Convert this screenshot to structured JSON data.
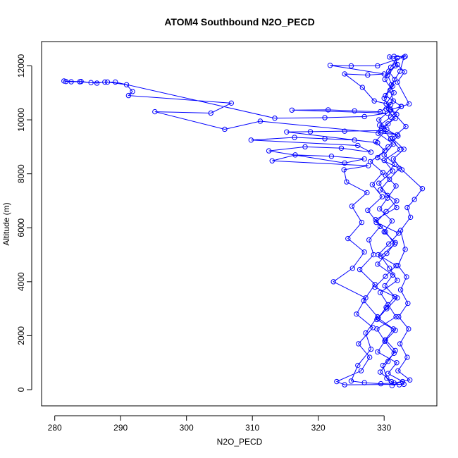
{
  "chart_data": {
    "type": "line",
    "title": "ATOM4 Southbound N2O_PECD",
    "xlabel": "N2O_PECD",
    "ylabel": "Altitude (m)",
    "xlim": [
      278,
      338
    ],
    "ylim": [
      -600,
      12900
    ],
    "xticks": [
      280,
      290,
      300,
      310,
      320,
      330
    ],
    "yticks": [
      0,
      2000,
      4000,
      6000,
      8000,
      10000,
      12000
    ],
    "grid": false,
    "colors": {
      "series": "#0000ff",
      "axes": "#000000"
    },
    "series": [
      {
        "marker": "open-circle",
        "points": [
          [
            331.2,
            150
          ],
          [
            330.4,
            420
          ],
          [
            329.8,
            900
          ],
          [
            331.5,
            1350
          ],
          [
            330.1,
            1800
          ],
          [
            328.9,
            2250
          ],
          [
            331.8,
            2700
          ],
          [
            330.6,
            3150
          ],
          [
            329.4,
            3600
          ],
          [
            332.0,
            4050
          ],
          [
            330.8,
            4500
          ],
          [
            329.5,
            4950
          ],
          [
            331.6,
            5400
          ],
          [
            330.2,
            5850
          ],
          [
            328.7,
            6300
          ],
          [
            331.9,
            6750
          ],
          [
            330.5,
            7200
          ],
          [
            329.2,
            7650
          ],
          [
            331.3,
            8100
          ],
          [
            330.0,
            8500
          ],
          [
            332.4,
            8900
          ],
          [
            331.0,
            9300
          ],
          [
            329.6,
            9700
          ],
          [
            331.7,
            10050
          ],
          [
            330.3,
            10400
          ],
          [
            331.4,
            10700
          ],
          [
            330.9,
            11100
          ],
          [
            331.6,
            11500
          ],
          [
            330.7,
            11800
          ],
          [
            332.0,
            12050
          ],
          [
            331.5,
            12350
          ],
          [
            333.0,
            12320
          ],
          [
            332.4,
            11800
          ],
          [
            331.1,
            11300
          ],
          [
            330.2,
            10900
          ],
          [
            332.6,
            10500
          ],
          [
            331.0,
            10100
          ],
          [
            329.3,
            9800
          ],
          [
            332.1,
            9400
          ],
          [
            330.6,
            9000
          ],
          [
            329.0,
            8600
          ],
          [
            332.3,
            8200
          ],
          [
            330.8,
            7800
          ],
          [
            329.4,
            7400
          ],
          [
            331.9,
            7000
          ],
          [
            330.3,
            6600
          ],
          [
            328.8,
            6200
          ],
          [
            332.2,
            5800
          ],
          [
            330.7,
            5400
          ],
          [
            329.1,
            5000
          ],
          [
            331.8,
            4600
          ],
          [
            330.2,
            4200
          ],
          [
            328.6,
            3800
          ],
          [
            332.0,
            3400
          ],
          [
            330.4,
            3000
          ],
          [
            328.9,
            2600
          ],
          [
            331.7,
            2200
          ],
          [
            330.1,
            1800
          ],
          [
            329.0,
            1400
          ],
          [
            331.9,
            1000
          ],
          [
            330.6,
            600
          ],
          [
            332.8,
            300
          ],
          [
            333.0,
            200
          ],
          [
            324.0,
            180
          ],
          [
            322.8,
            300
          ],
          [
            326.5,
            700
          ],
          [
            327.8,
            1200
          ],
          [
            326.1,
            1700
          ],
          [
            328.3,
            2300
          ],
          [
            325.8,
            2800
          ],
          [
            327.2,
            3400
          ],
          [
            322.3,
            4000
          ],
          [
            325.2,
            4500
          ],
          [
            327.0,
            5100
          ],
          [
            324.5,
            5600
          ],
          [
            326.6,
            6200
          ],
          [
            325.1,
            6800
          ],
          [
            327.4,
            7300
          ],
          [
            324.3,
            7700
          ],
          [
            323.9,
            8150
          ],
          [
            327.6,
            8300
          ],
          [
            313.0,
            8480
          ],
          [
            316.5,
            8700
          ],
          [
            322.0,
            8650
          ],
          [
            327.0,
            8550
          ],
          [
            324.0,
            8400
          ],
          [
            312.5,
            8850
          ],
          [
            318.0,
            9000
          ],
          [
            323.5,
            8950
          ],
          [
            328.0,
            8800
          ],
          [
            326.0,
            9050
          ],
          [
            309.8,
            9250
          ],
          [
            316.4,
            9350
          ],
          [
            321.0,
            9300
          ],
          [
            325.5,
            9250
          ],
          [
            329.0,
            9150
          ],
          [
            315.2,
            9550
          ],
          [
            318.8,
            9560
          ],
          [
            324.0,
            9580
          ],
          [
            329.5,
            9600
          ],
          [
            332.0,
            9450
          ],
          [
            311.2,
            9950
          ],
          [
            305.8,
            9650
          ],
          [
            295.2,
            10300
          ],
          [
            303.7,
            10250
          ],
          [
            306.8,
            10620
          ],
          [
            291.2,
            10900
          ],
          [
            291.8,
            11050
          ],
          [
            290.9,
            11300
          ],
          [
            288.0,
            11400
          ],
          [
            285.5,
            11380
          ],
          [
            284.0,
            11420
          ],
          [
            282.5,
            11410
          ],
          [
            281.7,
            11420
          ],
          [
            281.4,
            11440
          ],
          [
            283.8,
            11410
          ],
          [
            286.4,
            11360
          ],
          [
            287.6,
            11400
          ],
          [
            289.2,
            11400
          ],
          [
            313.4,
            10060
          ],
          [
            321.0,
            10080
          ],
          [
            327.0,
            10120
          ],
          [
            330.5,
            10250
          ],
          [
            316.0,
            10360
          ],
          [
            321.5,
            10370
          ],
          [
            325.5,
            10330
          ],
          [
            329.4,
            10300
          ],
          [
            331.0,
            10560
          ],
          [
            328.5,
            10700
          ],
          [
            326.7,
            11200
          ],
          [
            324.0,
            11700
          ],
          [
            327.5,
            11660
          ],
          [
            330.0,
            11700
          ],
          [
            321.8,
            12020
          ],
          [
            325.0,
            12000
          ],
          [
            329.0,
            12000
          ],
          [
            333.2,
            12350
          ],
          [
            330.8,
            12330
          ],
          [
            333.1,
            11780
          ],
          [
            332.0,
            11400
          ],
          [
            333.8,
            10590
          ],
          [
            332.6,
            10490
          ],
          [
            331.0,
            10380
          ],
          [
            333.3,
            9750
          ],
          [
            331.2,
            9320
          ],
          [
            333.0,
            8910
          ],
          [
            331.4,
            8550
          ],
          [
            332.7,
            8150
          ],
          [
            335.8,
            7450
          ],
          [
            334.6,
            7050
          ],
          [
            333.5,
            6750
          ],
          [
            334.0,
            6390
          ],
          [
            332.5,
            5900
          ],
          [
            333.2,
            5200
          ],
          [
            332.1,
            4600
          ],
          [
            333.4,
            4180
          ],
          [
            332.5,
            3700
          ],
          [
            333.6,
            3200
          ],
          [
            332.2,
            2700
          ],
          [
            333.7,
            2250
          ],
          [
            332.4,
            1700
          ],
          [
            333.5,
            1200
          ],
          [
            332.1,
            700
          ],
          [
            333.9,
            360
          ],
          [
            331.5,
            250
          ],
          [
            329.5,
            220
          ],
          [
            327.0,
            260
          ],
          [
            325.0,
            320
          ],
          [
            326.0,
            900
          ],
          [
            328.0,
            1500
          ],
          [
            327.2,
            2100
          ],
          [
            329.0,
            2700
          ],
          [
            326.9,
            3300
          ],
          [
            328.6,
            3900
          ],
          [
            326.3,
            4450
          ],
          [
            328.4,
            5000
          ],
          [
            327.7,
            5550
          ],
          [
            329.4,
            6050
          ],
          [
            327.5,
            6650
          ],
          [
            329.7,
            7150
          ],
          [
            328.2,
            7600
          ],
          [
            329.8,
            8050
          ],
          [
            327.9,
            8450
          ],
          [
            330.1,
            8850
          ],
          [
            328.7,
            9200
          ],
          [
            330.4,
            9650
          ],
          [
            329.2,
            10000
          ],
          [
            330.9,
            10350
          ],
          [
            330.0,
            10800
          ],
          [
            331.3,
            11250
          ],
          [
            330.5,
            11650
          ],
          [
            331.7,
            12000
          ],
          [
            332.0,
            12300
          ],
          [
            331.0,
            11950
          ],
          [
            330.1,
            11500
          ],
          [
            331.5,
            11000
          ],
          [
            330.3,
            10600
          ],
          [
            331.9,
            10200
          ],
          [
            330.6,
            9850
          ],
          [
            329.1,
            9500
          ],
          [
            331.4,
            9100
          ],
          [
            330.0,
            8700
          ],
          [
            331.6,
            8350
          ],
          [
            330.2,
            7950
          ],
          [
            331.8,
            7550
          ],
          [
            330.5,
            7100
          ],
          [
            329.3,
            6700
          ],
          [
            331.2,
            6250
          ],
          [
            330.0,
            5850
          ],
          [
            331.7,
            5450
          ],
          [
            330.4,
            5050
          ],
          [
            329.0,
            4650
          ],
          [
            331.3,
            4250
          ],
          [
            330.1,
            3850
          ],
          [
            331.6,
            3450
          ],
          [
            330.3,
            3050
          ],
          [
            329.1,
            2650
          ],
          [
            331.4,
            2250
          ],
          [
            330.2,
            1850
          ],
          [
            331.7,
            1450
          ],
          [
            330.6,
            1050
          ],
          [
            329.4,
            650
          ],
          [
            331.1,
            300
          ],
          [
            332.3,
            180
          ]
        ]
      }
    ]
  }
}
